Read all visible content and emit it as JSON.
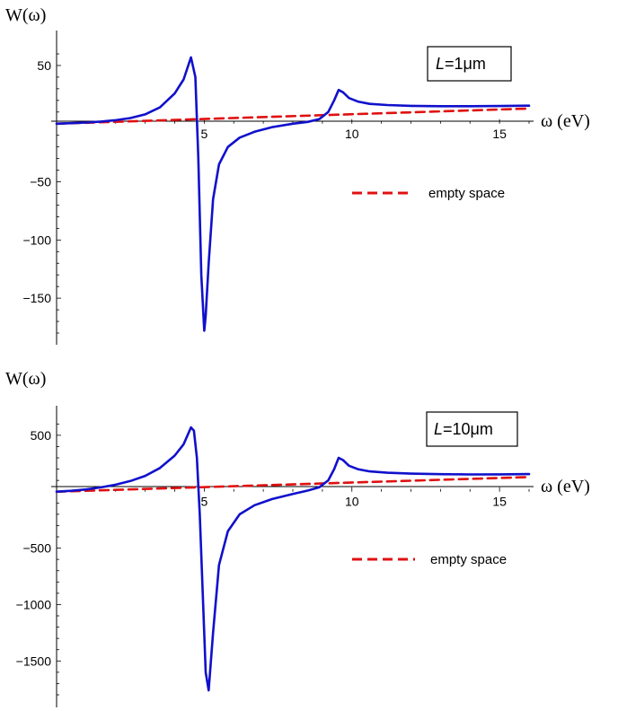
{
  "chart_data": [
    {
      "type": "line",
      "ylabel": "W(ω)",
      "xlabel": "ω (eV)",
      "x_ticks": [
        5,
        10,
        15
      ],
      "y_ticks": [
        50,
        -50,
        -100,
        -150
      ],
      "xlim": [
        0,
        16
      ],
      "ylim": [
        -180,
        60
      ],
      "annotation": {
        "L_italic": "L",
        "value": "=1μm"
      },
      "legend": {
        "position": "right-middle",
        "label": "empty space"
      },
      "series": [
        {
          "name": "",
          "color": "#1010cc",
          "x": [
            0,
            0.5,
            1,
            1.5,
            2,
            2.5,
            3,
            3.5,
            4,
            4.3,
            4.55,
            4.7,
            4.8,
            4.9,
            5.0,
            5.05,
            5.15,
            5.3,
            5.5,
            5.8,
            6.2,
            6.7,
            7.3,
            8,
            8.5,
            8.9,
            9.2,
            9.4,
            9.55,
            9.7,
            9.9,
            10.2,
            10.6,
            11.2,
            12,
            13,
            14,
            15,
            16
          ],
          "y": [
            0,
            0.4,
            1,
            1.8,
            3,
            4.8,
            8,
            14,
            26,
            38,
            57,
            40,
            -30,
            -130,
            -178,
            -165,
            -120,
            -65,
            -35,
            -20,
            -12,
            -7,
            -3,
            0,
            1.5,
            4,
            10,
            20,
            29,
            27,
            22,
            19,
            17,
            16,
            15.3,
            15,
            15,
            15.2,
            15.5
          ]
        },
        {
          "name": "empty space",
          "color": "#e01010",
          "dashed": true,
          "x": [
            0,
            16
          ],
          "y": [
            0,
            13
          ]
        }
      ]
    },
    {
      "type": "line",
      "ylabel": "W(ω)",
      "xlabel": "ω (eV)",
      "x_ticks": [
        5,
        10,
        15
      ],
      "y_ticks": [
        500,
        -500,
        -1000,
        -1500
      ],
      "xlim": [
        0,
        16
      ],
      "ylim": [
        -1800,
        650
      ],
      "annotation": {
        "L_italic": "L",
        "value": "=10μm"
      },
      "legend": {
        "position": "right-middle",
        "label": "empty space"
      },
      "series": [
        {
          "name": "",
          "color": "#1010cc",
          "x": [
            0,
            0.5,
            1,
            1.5,
            2,
            2.5,
            3,
            3.5,
            4,
            4.3,
            4.55,
            4.65,
            4.75,
            4.85,
            4.95,
            5.05,
            5.15,
            5.3,
            5.5,
            5.8,
            6.2,
            6.7,
            7.3,
            8,
            8.5,
            8.9,
            9.2,
            9.4,
            9.55,
            9.7,
            9.9,
            10.2,
            10.6,
            11.2,
            12,
            13,
            14,
            15,
            16
          ],
          "y": [
            0,
            8,
            20,
            38,
            62,
            95,
            140,
            210,
            320,
            420,
            570,
            540,
            300,
            -200,
            -900,
            -1600,
            -1760,
            -1250,
            -650,
            -350,
            -200,
            -120,
            -65,
            -20,
            10,
            40,
            100,
            200,
            300,
            280,
            230,
            200,
            180,
            168,
            160,
            155,
            153,
            154,
            156
          ]
        },
        {
          "name": "empty space",
          "color": "#e01010",
          "dashed": true,
          "x": [
            0,
            16
          ],
          "y": [
            0,
            130
          ]
        }
      ]
    }
  ]
}
